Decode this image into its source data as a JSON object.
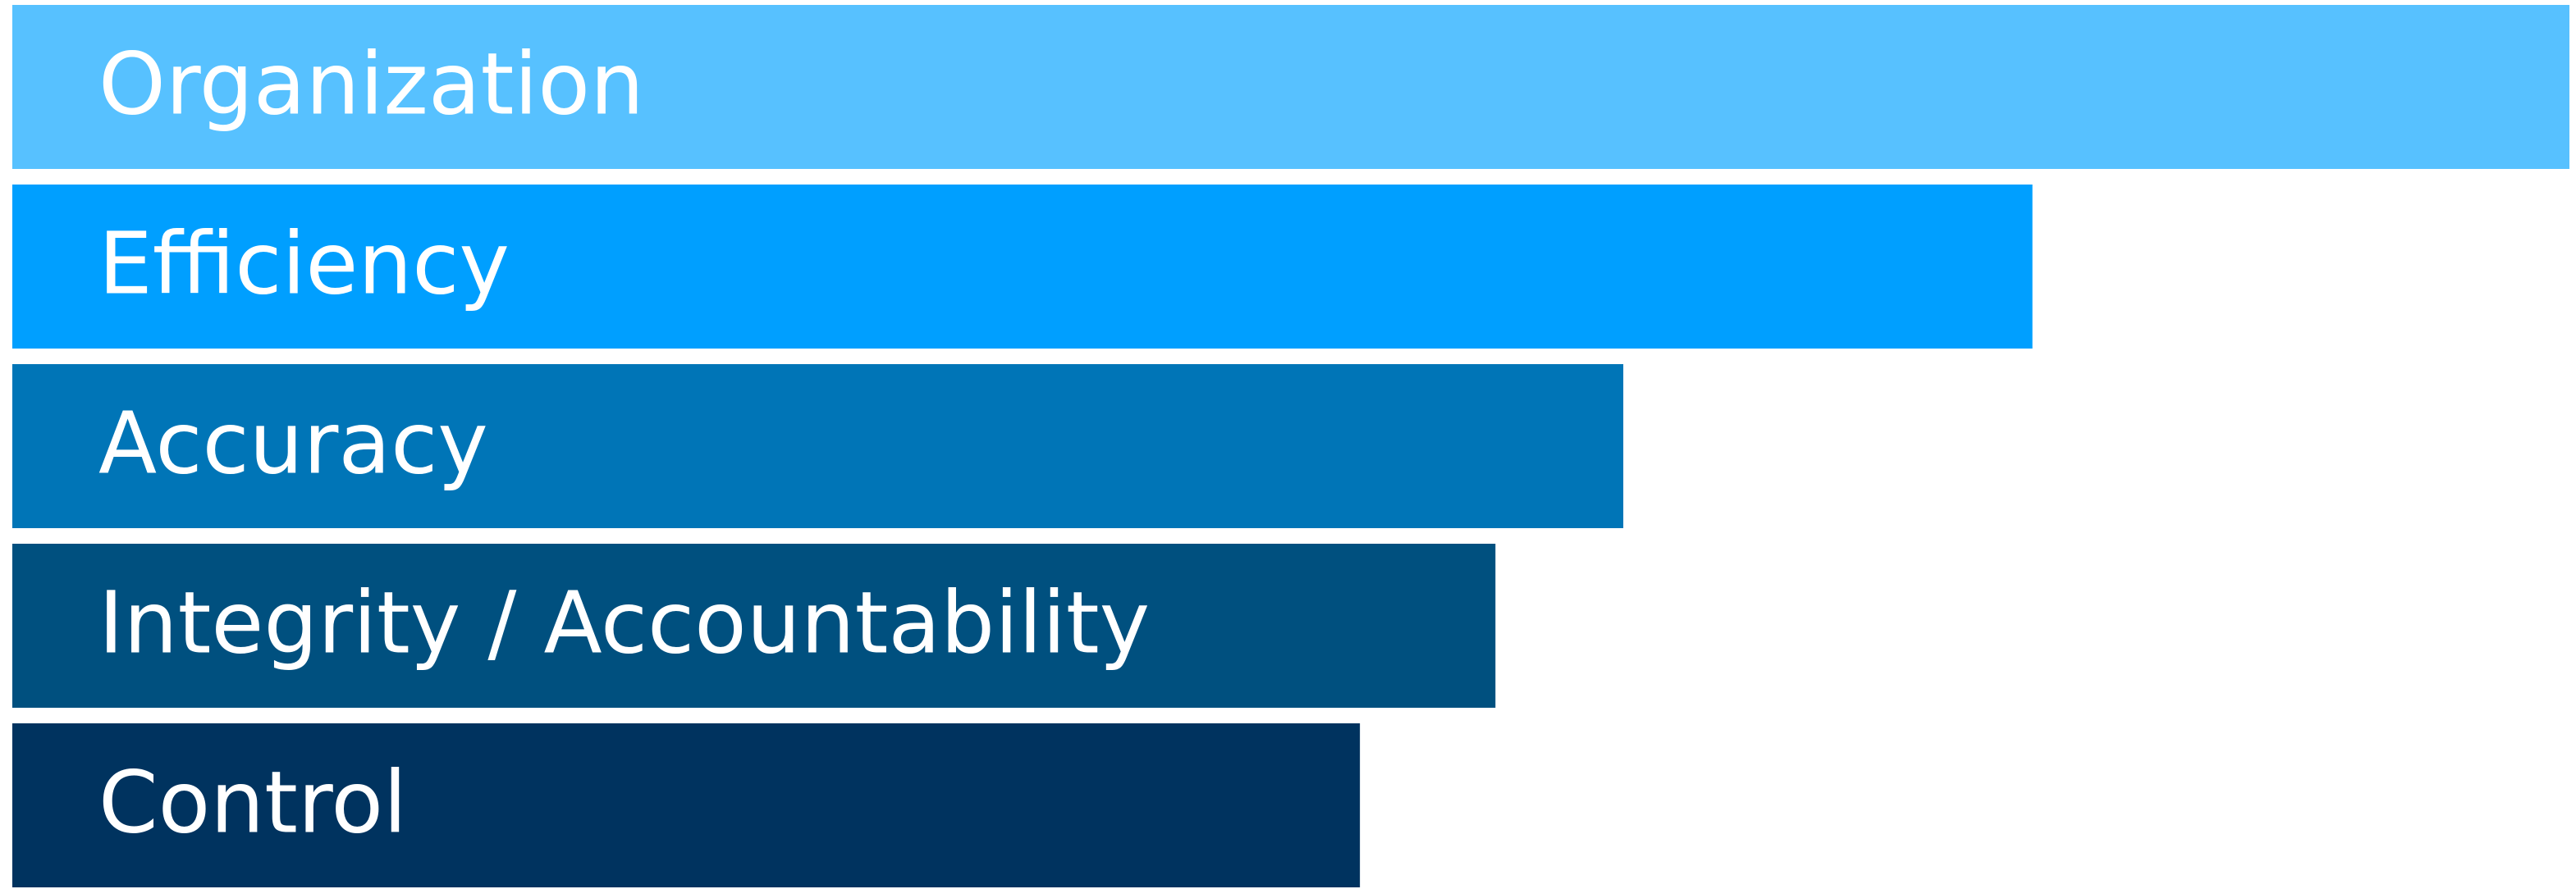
{
  "chart_data": {
    "type": "bar",
    "orientation": "horizontal",
    "categories": [
      "Organization",
      "Efficiency",
      "Accuracy",
      "Integrity / Accountability",
      "Control"
    ],
    "values": [
      100,
      79,
      63,
      58,
      52.7
    ],
    "xlim": [
      0,
      100
    ],
    "colors": [
      "#57C1FF",
      "#009FFF",
      "#0075B7",
      "#00507F",
      "#00335F"
    ],
    "grid": false,
    "legend": "none",
    "label_color": "#FFFFFF"
  }
}
